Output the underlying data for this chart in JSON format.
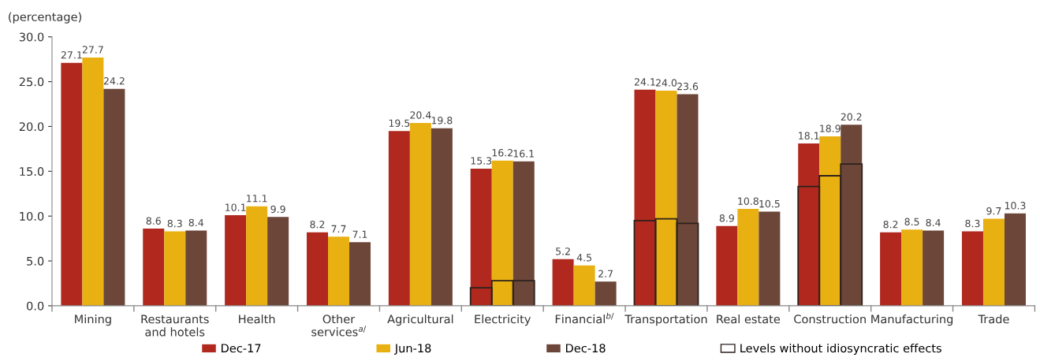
{
  "chart_data": {
    "type": "bar",
    "ylabel": "(percentage)",
    "categories": [
      "Mining",
      "Restaurants\nand hotels",
      "Health",
      "Other\nservices$^{a/}$",
      "Agricultural",
      "Electricity",
      "Financial$^{b/}$",
      "Transportation",
      "Real estate",
      "Construction",
      "Manufacturing",
      "Trade"
    ],
    "series": [
      {
        "name": "Dec-17",
        "color": "#b0281e",
        "values": [
          27.1,
          8.6,
          10.1,
          8.2,
          19.5,
          15.3,
          5.2,
          24.1,
          8.9,
          18.1,
          8.2,
          8.3
        ],
        "value_labels": [
          "27.1",
          "8.6",
          "10.1",
          "8.2",
          "19.5",
          "15.3",
          "5.2",
          "24.1",
          "8.9",
          "18.1",
          "8.2",
          "8.3"
        ]
      },
      {
        "name": "Jun-18",
        "color": "#e9b012",
        "values": [
          27.7,
          8.3,
          11.1,
          7.7,
          20.4,
          16.2,
          4.5,
          24.0,
          10.8,
          18.9,
          8.5,
          9.7
        ],
        "value_labels": [
          "27.7",
          "8.3",
          "11.1",
          "7.7",
          "20.4",
          "16.2",
          "4.5",
          "24.0",
          "10.8",
          "18.9",
          "8.5",
          "9.7"
        ]
      },
      {
        "name": "Dec-18",
        "color": "#6c4638",
        "values": [
          24.2,
          8.4,
          9.9,
          7.1,
          19.8,
          16.1,
          2.7,
          23.6,
          10.5,
          20.2,
          8.4,
          10.3
        ],
        "value_labels": [
          "24.2",
          "8.4",
          "9.9",
          "7.1",
          "19.8",
          "16.1",
          "2.7",
          "23.6",
          "10.5",
          "20.2",
          "8.4",
          "10.3"
        ]
      },
      {
        "type": "bar",
        "line_style": "solid",
        "name": "Levels without idiosyncratic effects",
        "color": "#2b211d",
        "values": [
          null,
          null,
          null,
          null,
          null,
          2.0,
          null,
          9.5,
          null,
          13.3,
          null,
          null
        ]
      },
      {
        "type": "bar",
        "line_style": "solid",
        "color": "#2b211d",
        "values": [
          null,
          null,
          null,
          null,
          null,
          2.8,
          null,
          9.7,
          null,
          14.5,
          null,
          null
        ]
      },
      {
        "type": "bar",
        "line_style": "solid",
        "color": "#2b211d",
        "values": [
          null,
          null,
          null,
          null,
          null,
          2.8,
          null,
          9.2,
          null,
          15.8,
          null,
          null
        ]
      }
    ],
    "ylim": [
      0,
      30
    ],
    "yticks": [
      {
        "value": 0,
        "label": "0.0"
      },
      {
        "value": 5,
        "label": "5.0"
      },
      {
        "value": 10,
        "label": "10.0"
      },
      {
        "value": 15,
        "label": "15.0"
      },
      {
        "value": 20,
        "label": "20.0"
      },
      {
        "value": 25,
        "label": "25.0"
      },
      {
        "value": 30,
        "label": "30.0"
      }
    ],
    "grid": false,
    "legend": "bottom"
  }
}
